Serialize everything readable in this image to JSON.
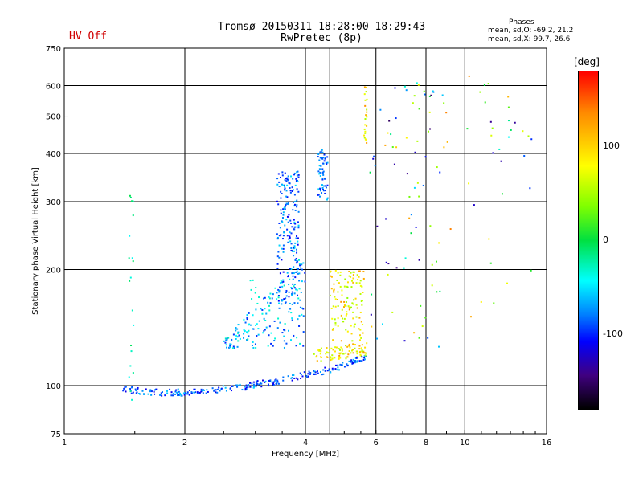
{
  "header": {
    "title_line1": "Tromsø 20150311 18:28:00—18:29:43",
    "title_line2": "RwPretec (8p)",
    "hv_status": "HV Off",
    "hv_color": "#d00000"
  },
  "phase_stats": {
    "heading": "Phases",
    "o_line": "mean, sd,O: -69.2, 21.2",
    "x_line": "mean, sd,X:  99.7, 26.6"
  },
  "colorbar": {
    "unit": "[deg]",
    "ticks": [
      {
        "label": "100",
        "value": 100
      },
      {
        "label": "0",
        "value": 0
      },
      {
        "label": "-100",
        "value": -100
      }
    ],
    "range": [
      -180,
      180
    ]
  },
  "chart_data": {
    "type": "scatter",
    "xlabel": "Frequency [MHz]",
    "ylabel": "Stationary phase Virtual Height [km]",
    "x_scale": "log",
    "y_scale": "log",
    "xlim": [
      1,
      16
    ],
    "ylim": [
      75,
      750
    ],
    "x_ticks": [
      {
        "value": 1,
        "label": "1"
      },
      {
        "value": 2,
        "label": "2"
      },
      {
        "value": 4,
        "label": "4"
      },
      {
        "value": 6,
        "label": "6"
      },
      {
        "value": 8,
        "label": "8"
      },
      {
        "value": 10,
        "label": "10"
      },
      {
        "value": 16,
        "label": "16"
      }
    ],
    "x_grid": [
      2,
      4,
      4.6,
      6,
      8,
      10
    ],
    "y_ticks": [
      {
        "value": 75,
        "label": "75"
      },
      {
        "value": 100,
        "label": "100"
      },
      {
        "value": 200,
        "label": "200"
      },
      {
        "value": 300,
        "label": "300"
      },
      {
        "value": 400,
        "label": "400"
      },
      {
        "value": 500,
        "label": "500"
      },
      {
        "value": 600,
        "label": "600"
      },
      {
        "value": 750,
        "label": "750"
      }
    ],
    "y_grid": [
      100,
      200,
      300,
      400,
      500,
      600
    ],
    "color_scale": "phase in degrees (-180 black/purple → blue → cyan → green → yellow → red 180)",
    "traces": [
      {
        "name": "E-layer O trace",
        "f": [
          1.4,
          1.5,
          1.6,
          1.8,
          2.0,
          2.2,
          2.5,
          2.8,
          3.0,
          3.3,
          3.6,
          3.9,
          4.2,
          4.6,
          5.0,
          5.6
        ],
        "h": [
          98,
          97,
          96,
          96,
          96,
          97,
          98,
          99,
          101,
          102,
          104,
          106,
          108,
          110,
          113,
          118
        ],
        "phase": -80
      },
      {
        "name": "F-layer O cluster",
        "f": [
          2.6,
          2.9,
          3.2,
          3.4,
          3.5,
          3.6,
          3.7,
          3.8,
          3.9,
          4.3,
          4.5
        ],
        "h": [
          145,
          155,
          165,
          175,
          190,
          210,
          230,
          260,
          300,
          350,
          390
        ],
        "phase": -70
      },
      {
        "name": "F-layer X trace",
        "f": [
          4.2,
          4.6,
          5.0,
          5.4,
          5.7
        ],
        "h": [
          130,
          140,
          150,
          160,
          170
        ],
        "phase": 90
      }
    ]
  }
}
